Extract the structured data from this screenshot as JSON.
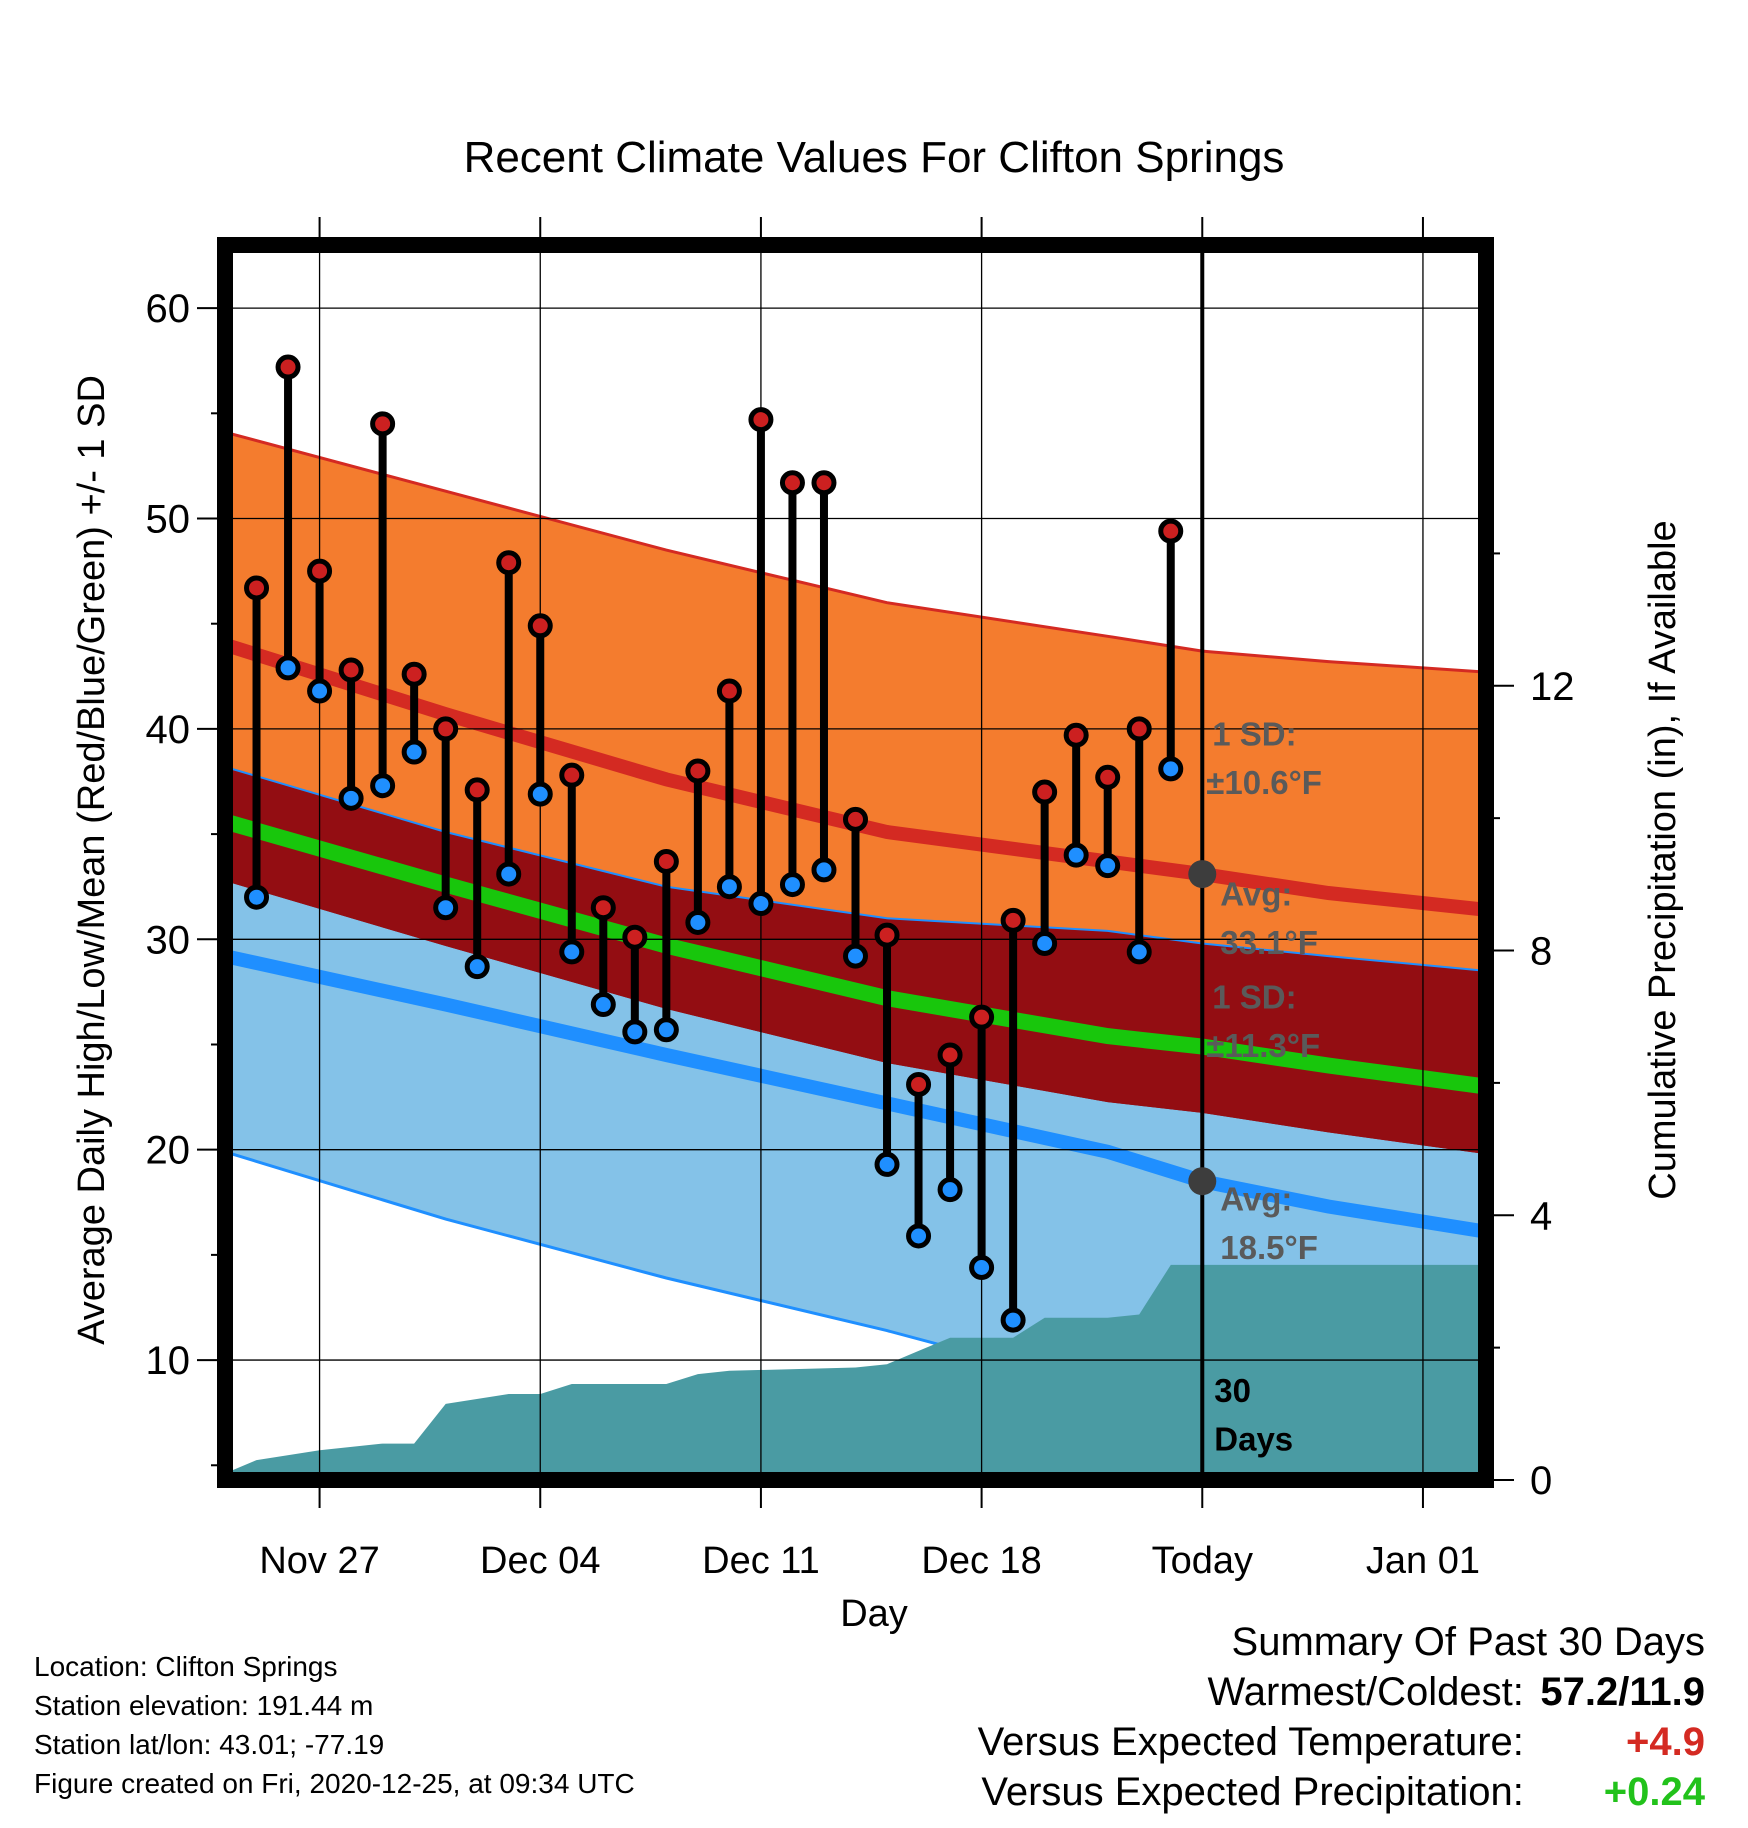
{
  "chart_data": {
    "type": "line",
    "title": "Recent Climate Values For Clifton Springs",
    "xlabel": "Day",
    "ylabel": "Average Daily High/Low/Mean (Red/Blue/Green) +/- 1 SD",
    "y2label": "Cumulative Precipitation (in), If Available",
    "ylim": [
      4.3,
      63.0
    ],
    "y2lim": [
      0,
      18.66
    ],
    "yticks": [
      10,
      20,
      30,
      40,
      50,
      60
    ],
    "y2ticks": [
      0,
      4,
      8,
      12
    ],
    "xtick_labels": [
      {
        "date": "2020-11-27",
        "label": "Nov 27"
      },
      {
        "date": "2020-12-04",
        "label": "Dec 04"
      },
      {
        "date": "2020-12-11",
        "label": "Dec 11"
      },
      {
        "date": "2020-12-18",
        "label": "Dec 18"
      },
      {
        "date": "2020-12-25",
        "label": "Today"
      },
      {
        "date": "2021-01-01",
        "label": "Jan 01"
      }
    ],
    "xlim": [
      "2020-11-24",
      "2021-01-03"
    ],
    "today": "2020-12-25",
    "grid": true,
    "normal_high": [
      {
        "date": "2020-11-24",
        "avg": 44.0,
        "upper": 54.1
      },
      {
        "date": "2020-12-01",
        "avg": 40.7,
        "upper": 51.3
      },
      {
        "date": "2020-12-08",
        "avg": 37.6,
        "upper": 48.5
      },
      {
        "date": "2020-12-15",
        "avg": 35.1,
        "upper": 46.0
      },
      {
        "date": "2020-12-22",
        "avg": 33.7,
        "upper": 44.4
      },
      {
        "date": "2020-12-25",
        "avg": 33.1,
        "upper": 43.7
      },
      {
        "date": "2020-12-29",
        "avg": 32.2,
        "upper": 43.2
      },
      {
        "date": "2021-01-03",
        "avg": 31.4,
        "upper": 42.7
      }
    ],
    "normal_mean": [
      {
        "date": "2020-11-24",
        "avg": 35.6
      },
      {
        "date": "2020-12-01",
        "avg": 32.6
      },
      {
        "date": "2020-12-08",
        "avg": 29.7
      },
      {
        "date": "2020-12-15",
        "avg": 27.2
      },
      {
        "date": "2020-12-22",
        "avg": 25.4
      },
      {
        "date": "2020-12-25",
        "avg": 24.9
      },
      {
        "date": "2020-12-29",
        "avg": 24.0
      },
      {
        "date": "2021-01-03",
        "avg": 23.0
      }
    ],
    "normal_low": [
      {
        "date": "2020-11-24",
        "avg": 29.2,
        "lower": 19.9,
        "upper": 38.2
      },
      {
        "date": "2020-12-01",
        "avg": 26.9,
        "lower": 16.7,
        "upper": 35.1
      },
      {
        "date": "2020-12-08",
        "avg": 24.5,
        "lower": 13.9,
        "upper": 32.5
      },
      {
        "date": "2020-12-15",
        "avg": 22.2,
        "lower": 11.4,
        "upper": 31.0
      },
      {
        "date": "2020-12-22",
        "avg": 19.9,
        "lower": 8.6,
        "upper": 30.4
      },
      {
        "date": "2020-12-25",
        "avg": 18.5,
        "lower": 7.2,
        "upper": 29.8
      },
      {
        "date": "2020-12-29",
        "avg": 17.3,
        "lower": 6.0,
        "upper": 29.2
      },
      {
        "date": "2021-01-03",
        "avg": 16.1,
        "lower": 4.8,
        "upper": 28.5
      }
    ],
    "daily": [
      {
        "date": "2020-11-25",
        "high": 46.7,
        "low": 32.0
      },
      {
        "date": "2020-11-26",
        "high": 57.2,
        "low": 42.9
      },
      {
        "date": "2020-11-27",
        "high": 47.5,
        "low": 41.8
      },
      {
        "date": "2020-11-28",
        "high": 42.8,
        "low": 36.7
      },
      {
        "date": "2020-11-29",
        "high": 54.5,
        "low": 37.3
      },
      {
        "date": "2020-11-30",
        "high": 42.6,
        "low": 38.9
      },
      {
        "date": "2020-12-01",
        "high": 40.0,
        "low": 31.5
      },
      {
        "date": "2020-12-02",
        "high": 37.1,
        "low": 28.7
      },
      {
        "date": "2020-12-03",
        "high": 47.9,
        "low": 33.1
      },
      {
        "date": "2020-12-04",
        "high": 44.9,
        "low": 36.9
      },
      {
        "date": "2020-12-05",
        "high": 37.8,
        "low": 29.4
      },
      {
        "date": "2020-12-06",
        "high": 31.5,
        "low": 26.9
      },
      {
        "date": "2020-12-07",
        "high": 30.1,
        "low": 25.6
      },
      {
        "date": "2020-12-08",
        "high": 33.7,
        "low": 25.7
      },
      {
        "date": "2020-12-09",
        "high": 38.0,
        "low": 30.8
      },
      {
        "date": "2020-12-10",
        "high": 41.8,
        "low": 32.5
      },
      {
        "date": "2020-12-11",
        "high": 54.7,
        "low": 31.7
      },
      {
        "date": "2020-12-12",
        "high": 51.7,
        "low": 32.6
      },
      {
        "date": "2020-12-13",
        "high": 51.7,
        "low": 33.3
      },
      {
        "date": "2020-12-14",
        "high": 35.7,
        "low": 29.2
      },
      {
        "date": "2020-12-15",
        "high": 30.2,
        "low": 19.3
      },
      {
        "date": "2020-12-16",
        "high": 23.1,
        "low": 15.9
      },
      {
        "date": "2020-12-17",
        "high": 24.5,
        "low": 18.1
      },
      {
        "date": "2020-12-18",
        "high": 26.3,
        "low": 14.4
      },
      {
        "date": "2020-12-19",
        "high": 30.9,
        "low": 11.9
      },
      {
        "date": "2020-12-20",
        "high": 37.0,
        "low": 29.8
      },
      {
        "date": "2020-12-21",
        "high": 39.7,
        "low": 34.0
      },
      {
        "date": "2020-12-22",
        "high": 37.7,
        "low": 33.5
      },
      {
        "date": "2020-12-23",
        "high": 40.0,
        "low": 29.4
      },
      {
        "date": "2020-12-24",
        "high": 49.4,
        "low": 38.1
      }
    ],
    "cumulative_precip": [
      {
        "date": "2020-11-24",
        "value": 0.0
      },
      {
        "date": "2020-11-24",
        "value": 0.1
      },
      {
        "date": "2020-11-25",
        "value": 0.3
      },
      {
        "date": "2020-11-27",
        "value": 0.45
      },
      {
        "date": "2020-11-29",
        "value": 0.55
      },
      {
        "date": "2020-11-30",
        "value": 0.55
      },
      {
        "date": "2020-12-01",
        "value": 1.15
      },
      {
        "date": "2020-12-03",
        "value": 1.3
      },
      {
        "date": "2020-12-04",
        "value": 1.3
      },
      {
        "date": "2020-12-05",
        "value": 1.45
      },
      {
        "date": "2020-12-08",
        "value": 1.45
      },
      {
        "date": "2020-12-09",
        "value": 1.6
      },
      {
        "date": "2020-12-10",
        "value": 1.65
      },
      {
        "date": "2020-12-14",
        "value": 1.7
      },
      {
        "date": "2020-12-15",
        "value": 1.75
      },
      {
        "date": "2020-12-16",
        "value": 1.95
      },
      {
        "date": "2020-12-17",
        "value": 2.15
      },
      {
        "date": "2020-12-18",
        "value": 2.15
      },
      {
        "date": "2020-12-19",
        "value": 2.15
      },
      {
        "date": "2020-12-20",
        "value": 2.45
      },
      {
        "date": "2020-12-22",
        "value": 2.45
      },
      {
        "date": "2020-12-23",
        "value": 2.5
      },
      {
        "date": "2020-12-24",
        "value": 3.25
      },
      {
        "date": "2020-12-25",
        "value": 3.25
      },
      {
        "date": "2021-01-03",
        "value": 3.25
      }
    ],
    "annotations": {
      "high_sd": "1 SD:",
      "high_sd_value": "±10.6°F",
      "high_avg": "Avg:",
      "high_avg_value": "33.1°F",
      "low_sd": "1 SD:",
      "low_sd_value": "±11.3°F",
      "low_avg": "Avg:",
      "low_avg_value": "18.5°F",
      "days_number": "30",
      "days_word": "Days"
    },
    "colors": {
      "high_band": "#f47c2e",
      "high_line": "#d42a22",
      "mean_band": "#930d12",
      "mean_line": "#18c60c",
      "low_band": "#84c2e8",
      "low_line": "#1f8fff",
      "precip": "#4a9ba3",
      "high_point": "#cc2020",
      "low_point": "#1f8fff",
      "marker_gray": "#3d3d3d",
      "annotation_gray": "#5a5a5a"
    }
  },
  "info": {
    "location": "Location: Clifton Springs",
    "elevation": "Station elevation: 191.44 m",
    "latlon": "Station lat/lon: 43.01; -77.19",
    "created": "Figure created on Fri, 2020-12-25, at 09:34 UTC"
  },
  "summary": {
    "heading": "Summary Of Past 30 Days",
    "warm_cold_label": "Warmest/Coldest:",
    "warm_cold_value": "57.2/11.9",
    "temp_label": "Versus Expected Temperature:",
    "temp_value": "+4.9",
    "temp_color": "#d42a22",
    "precip_label": "Versus Expected Precipitation:",
    "precip_value": "+0.24",
    "precip_color": "#22c21b"
  }
}
